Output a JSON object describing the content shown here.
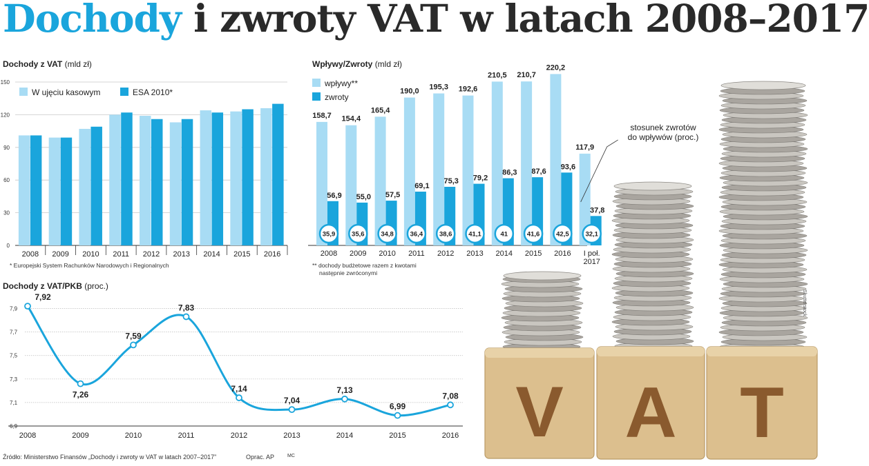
{
  "title": {
    "part1": "Dochody",
    "part2": "i zwroty VAT w latach 2008–2017"
  },
  "colors": {
    "light": "#a8dcf4",
    "dark": "#1aa5dc",
    "line": "#1aa5dc",
    "text": "#222222"
  },
  "chart1": {
    "title_bold": "Dochody z VAT",
    "title_unit": "(mld zł)",
    "note": "* Europejski System Rachunków Narodowych i Regionalnych"
  },
  "chart2": {
    "title_bold": "Wpływy/Zwroty",
    "title_unit": "(mld zł)",
    "note_line1": "** dochody budżetowe razem z kwotami",
    "note_line2": "następnie zwróconymi",
    "annotation_line1": "stosunek zwrotów",
    "annotation_line2": "do wpływów (proc.)"
  },
  "chart3": {
    "title_bold": "Dochody z VAT/PKB",
    "title_unit": "(proc.)"
  },
  "source": "Źródło: Ministerstwo Finansów „Dochody i zwroty w VAT w latach 2007–2017”",
  "credits": "Oprac. AP",
  "credits2": "MC",
  "photo": {
    "credit": "Shutterstock",
    "letters": [
      "V",
      "A",
      "T"
    ],
    "description": "coin stacks on wooden VAT blocks"
  },
  "chart_data": [
    {
      "type": "bar",
      "categories": [
        "2008",
        "2009",
        "2010",
        "2011",
        "2012",
        "2013",
        "2014",
        "2015",
        "2016"
      ],
      "series": [
        {
          "name": "W ujęciu kasowym",
          "values": [
            101,
            99,
            107,
            120,
            119,
            113,
            124,
            123,
            126
          ]
        },
        {
          "name": "ESA 2010*",
          "values": [
            101,
            99,
            109,
            122,
            116,
            116,
            122,
            125,
            130
          ]
        }
      ],
      "yticks": [
        0,
        30,
        60,
        90,
        120,
        150
      ],
      "ylim": [
        0,
        150
      ],
      "legend": "top-left",
      "grid": true
    },
    {
      "type": "bar",
      "categories": [
        "2008",
        "2009",
        "2010",
        "2011",
        "2012",
        "2013",
        "2014",
        "2015",
        "2016",
        "I poł.\n2017"
      ],
      "series": [
        {
          "name": "wpływy**",
          "values": [
            158.7,
            154.4,
            165.4,
            190.0,
            195.3,
            192.6,
            210.5,
            210.7,
            220.2,
            117.9
          ],
          "labels": [
            "158,7",
            "154,4",
            "165,4",
            "190,0",
            "195,3",
            "192,6",
            "210,5",
            "210,7",
            "220,2",
            "117,9"
          ]
        },
        {
          "name": "zwroty",
          "values": [
            56.9,
            55.0,
            57.5,
            69.1,
            75.3,
            79.2,
            86.3,
            87.6,
            93.6,
            37.8
          ],
          "labels": [
            "56,9",
            "55,0",
            "57,5",
            "69,1",
            "75,3",
            "79,2",
            "86,3",
            "87,6",
            "93,6",
            "37,8"
          ]
        }
      ],
      "ratio_labels": [
        "35,9",
        "35,6",
        "34,8",
        "36,4",
        "38,6",
        "41,1",
        "41",
        "41,6",
        "42,5",
        "32,1"
      ],
      "ylim": [
        0,
        225
      ],
      "legend": "top-left"
    },
    {
      "type": "line",
      "x": [
        "2008",
        "2009",
        "2010",
        "2011",
        "2012",
        "2013",
        "2014",
        "2015",
        "2016"
      ],
      "values": [
        7.92,
        7.26,
        7.59,
        7.83,
        7.14,
        7.04,
        7.13,
        6.99,
        7.08
      ],
      "labels": [
        "7,92",
        "7,26",
        "7,59",
        "7,83",
        "7,14",
        "7,04",
        "7,13",
        "6,99",
        "7,08"
      ],
      "yticks": [
        "6,9",
        "7,1",
        "7,3",
        "7,5",
        "7,7",
        "7,9"
      ],
      "ylim": [
        6.9,
        7.95
      ],
      "grid": true
    }
  ]
}
